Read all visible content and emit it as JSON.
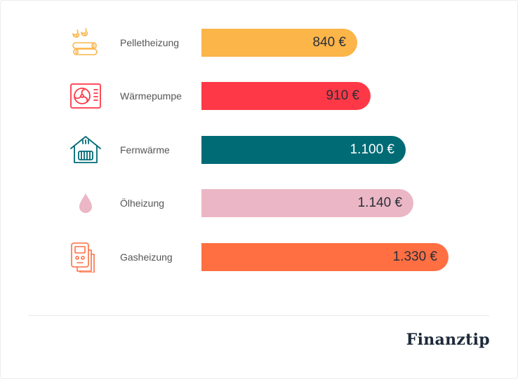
{
  "chart_data": {
    "type": "bar",
    "orientation": "horizontal",
    "categories": [
      "Pelletheizung",
      "Wärmepumpe",
      "Fernwärme",
      "Ölheizung",
      "Gasheizung"
    ],
    "values": [
      840,
      910,
      1100,
      1140,
      1330
    ],
    "value_labels": [
      "840 €",
      "910 €",
      "1.100 €",
      "1.140 €",
      "1.330 €"
    ],
    "colors": [
      "#fbb549",
      "#ff3847",
      "#006b75",
      "#ebb6c5",
      "#ff6f42"
    ],
    "icons": [
      "pellet-heating-icon",
      "heat-pump-icon",
      "district-heating-icon",
      "oil-drop-icon",
      "gas-meter-icon"
    ],
    "xlim": [
      0,
      1500
    ],
    "grid": false,
    "title": "",
    "xlabel": "",
    "ylabel": ""
  },
  "brand": {
    "logo_text": "Finanztip",
    "color": "#1e2a3a"
  }
}
